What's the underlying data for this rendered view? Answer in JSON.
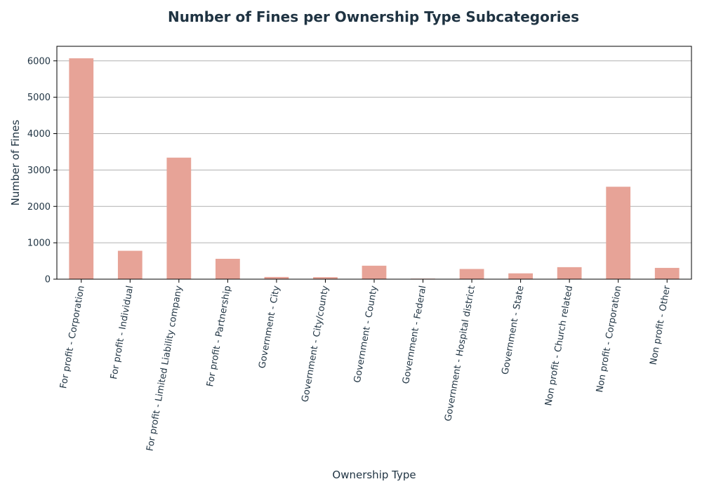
{
  "chart_data": {
    "type": "bar",
    "title": "Number of Fines per Ownership Type Subcategories",
    "xlabel": "Ownership Type",
    "ylabel": "Number of Fines",
    "categories": [
      "For profit - Corporation",
      "For profit - Individual",
      "For profit - Limited Liability company",
      "For profit - Partnership",
      "Government - City",
      "Government - City/county",
      "Government - County",
      "Government - Federal",
      "Government - Hospital district",
      "Government - State",
      "Non profit - Church related",
      "Non profit - Corporation",
      "Non profit - Other"
    ],
    "values": [
      6070,
      780,
      3340,
      560,
      60,
      55,
      370,
      15,
      280,
      160,
      330,
      2540,
      310
    ],
    "ylim": [
      0,
      6400
    ],
    "yticks": [
      0,
      1000,
      2000,
      3000,
      4000,
      5000,
      6000
    ],
    "grid": "horizontal",
    "bar_color": "#e7a397",
    "text_color": "#1f3342"
  }
}
